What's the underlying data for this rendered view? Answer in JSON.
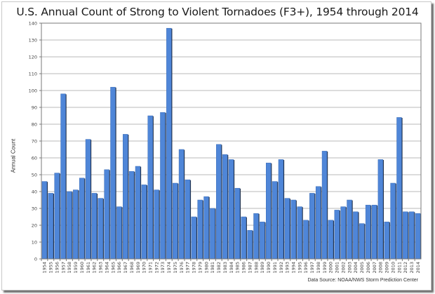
{
  "chart_data": {
    "type": "bar",
    "title": "U.S. Annual Count of Strong to Violent Tornadoes (F3+), 1954 through 2014",
    "xlabel": "",
    "ylabel": "Annual Count",
    "source_note": "Data Source: NOAA/NWS Storm Prediction Center",
    "ylim": [
      0,
      140
    ],
    "ytick_step": 10,
    "grid": true,
    "legend": "none",
    "bar_color": "#4f86d8",
    "bar_edge_color": "#1f2d44",
    "categories": [
      "1954",
      "1955",
      "1956",
      "1957",
      "1958",
      "1959",
      "1960",
      "1961",
      "1962",
      "1963",
      "1964",
      "1965",
      "1966",
      "1967",
      "1968",
      "1969",
      "1970",
      "1971",
      "1972",
      "1973",
      "1974",
      "1975",
      "1976",
      "1977",
      "1978",
      "1979",
      "1980",
      "1981",
      "1982",
      "1983",
      "1984",
      "1985",
      "1986",
      "1987",
      "1988",
      "1989",
      "1990",
      "1991",
      "1992",
      "1993",
      "1994",
      "1995",
      "1996",
      "1997",
      "1998",
      "1999",
      "2000",
      "2001",
      "2002",
      "2003",
      "2004",
      "2005",
      "2006",
      "2007",
      "2008",
      "2009",
      "2010",
      "2011",
      "2012",
      "2013",
      "2014"
    ],
    "values": [
      46,
      39,
      51,
      98,
      40,
      41,
      48,
      71,
      39,
      36,
      53,
      102,
      31,
      74,
      52,
      55,
      44,
      85,
      41,
      87,
      137,
      45,
      65,
      47,
      25,
      35,
      37,
      30,
      68,
      62,
      59,
      42,
      25,
      17,
      27,
      22,
      57,
      46,
      59,
      36,
      35,
      31,
      23,
      39,
      43,
      64,
      23,
      29,
      31,
      35,
      28,
      21,
      32,
      32,
      59,
      22,
      45,
      84,
      28,
      28,
      27
    ]
  }
}
